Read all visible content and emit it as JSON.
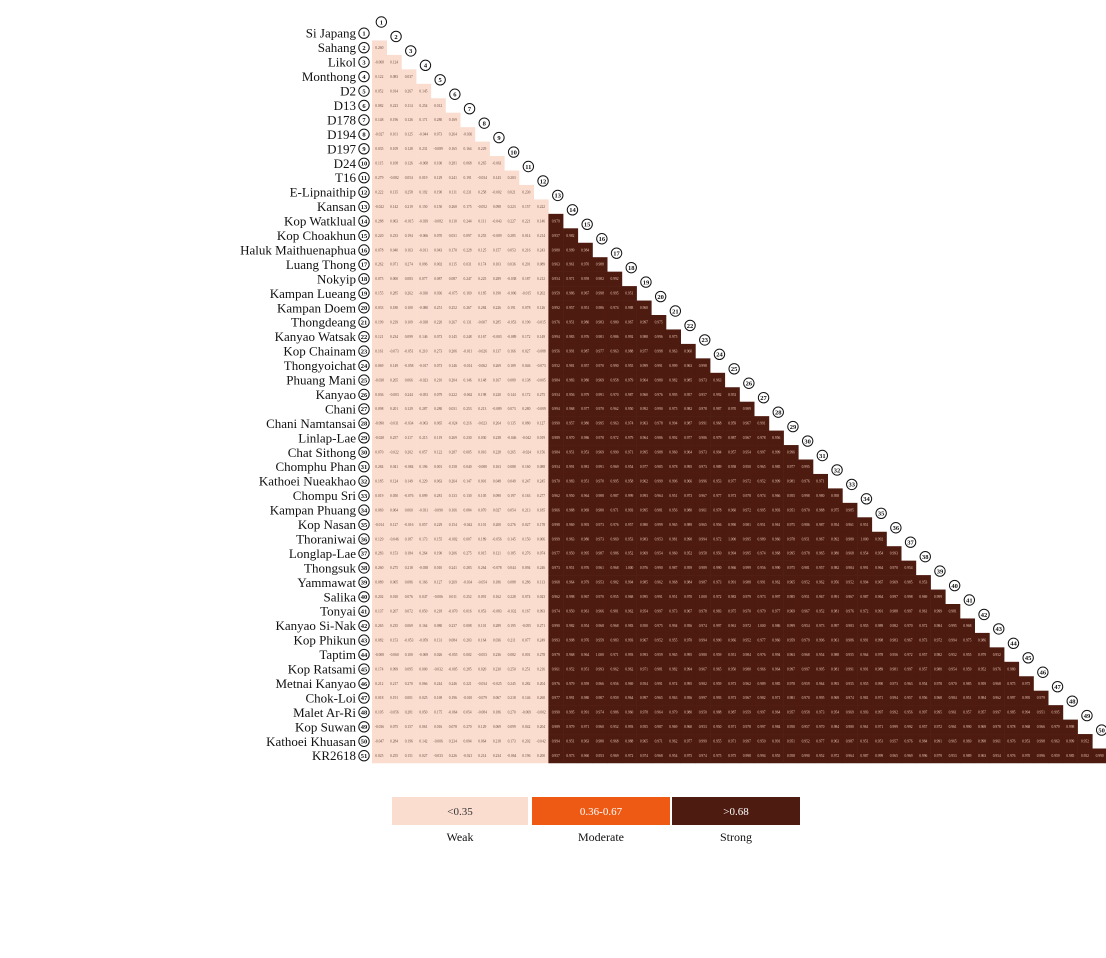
{
  "chart_data": {
    "type": "heatmap",
    "layout": "lower-triangle correlation matrix",
    "row_labels": [
      "Si Japang",
      "Sahang",
      "Likol",
      "Monthong",
      "D2",
      "D13",
      "D178",
      "D194",
      "D197",
      "D24",
      "T16",
      "E-Lipnaithip",
      "Kansan",
      "Kop Watklual",
      "Kop Choakhun",
      "Haluk Maithuenaphua",
      "Luang Thong",
      "Nokyip",
      "Kampan Lueang",
      "Kampan Doem",
      "Thongdeang",
      "Kanyao Watsak",
      "Kop Chainam",
      "Thongyoichat",
      "Phuang Mani",
      "Kanyao",
      "Chani",
      "Chani Namtansai",
      "Linlap-Lae",
      "Chat Sithong",
      "Chomphu Phan",
      "Kathoei Nueakhao",
      "Chompu Sri",
      "Kampan Phuang",
      "Kop Nasan",
      "Thoraniwai",
      "Longlap-Lae",
      "Thongsuk",
      "Yammawat",
      "Salika",
      "Tonyai",
      "Kanyao Si-Nak",
      "Kop Phikun",
      "Taptim",
      "Kop Ratsami",
      "Metnai Kanyao",
      "Chok-Loi",
      "Malet Ar-Ri",
      "Kop Suwan",
      "Kathoei Khuasan",
      "KR2618"
    ],
    "column_indices": [
      1,
      2,
      3,
      4,
      5,
      6,
      7,
      8,
      9,
      10,
      11,
      12,
      13,
      14,
      15,
      16,
      17,
      18,
      19,
      20,
      21,
      22,
      23,
      24,
      25,
      26,
      27,
      28,
      29,
      30,
      31,
      32,
      33,
      34,
      35,
      36,
      37,
      38,
      39,
      40,
      41,
      42,
      43,
      44,
      45,
      46,
      47,
      48,
      49,
      50,
      51
    ],
    "value_ranges": {
      "weak_block": [
        -0.09,
        0.29
      ],
      "strong_block": [
        0.95,
        1.0
      ],
      "kr2618_moderate_span": [
        0.4,
        0.67
      ]
    },
    "legend": [
      {
        "range": "<0.35",
        "label": "Weak",
        "color": "#FBDDD0",
        "text_color": "#333333"
      },
      {
        "range": "0.36-0.67",
        "label": "Moderate",
        "color": "#EE5A14",
        "text_color": "#ffffff"
      },
      {
        "range": ">0.68",
        "label": "Strong",
        "color": "#4E1B10",
        "text_color": "#ffffff"
      }
    ]
  }
}
